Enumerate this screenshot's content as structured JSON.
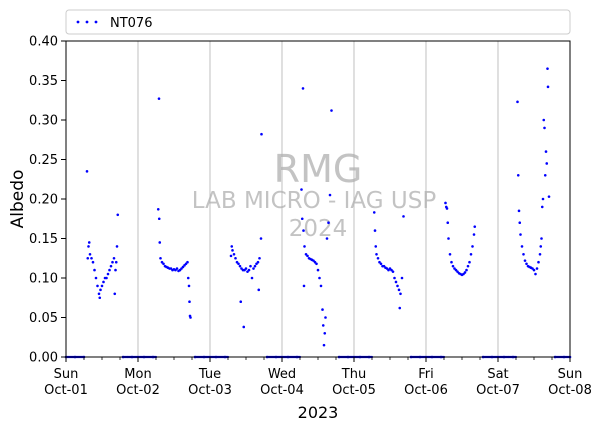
{
  "chart_data": {
    "type": "scatter",
    "title": "",
    "xlabel": "2023",
    "ylabel": "Albedo",
    "ylim": [
      0,
      0.4
    ],
    "xlim": [
      "2023-10-01",
      "2023-10-08"
    ],
    "grid": "vertical lines at day boundaries",
    "legend_placement": "top (above plot)",
    "y_ticks": [
      "0.00",
      "0.05",
      "0.10",
      "0.15",
      "0.20",
      "0.25",
      "0.30",
      "0.35",
      "0.40"
    ],
    "x_ticks": [
      {
        "day": "Sun",
        "date": "Oct-01"
      },
      {
        "day": "Mon",
        "date": "Oct-02"
      },
      {
        "day": "Tue",
        "date": "Oct-03"
      },
      {
        "day": "Wed",
        "date": "Oct-04"
      },
      {
        "day": "Thu",
        "date": "Oct-05"
      },
      {
        "day": "Fri",
        "date": "Oct-06"
      },
      {
        "day": "Sat",
        "date": "Oct-07"
      },
      {
        "day": "Sun",
        "date": "Oct-08"
      }
    ],
    "watermark": [
      "RMG",
      "LAB MICRO - IAG USP",
      "2024"
    ],
    "series": [
      {
        "name": "NT076",
        "color": "#0000ff",
        "marker": "dot",
        "points": [
          [
            "2023-10-01 00:00",
            0.0
          ],
          [
            "2023-10-01 03:00",
            0.0
          ],
          [
            "2023-10-01 06:00",
            0.0
          ],
          [
            "2023-10-01 07:00",
            0.235
          ],
          [
            "2023-10-01 07:15",
            0.125
          ],
          [
            "2023-10-01 07:30",
            0.14
          ],
          [
            "2023-10-01 07:45",
            0.145
          ],
          [
            "2023-10-01 08:00",
            0.13
          ],
          [
            "2023-10-01 08:30",
            0.125
          ],
          [
            "2023-10-01 09:00",
            0.12
          ],
          [
            "2023-10-01 09:30",
            0.11
          ],
          [
            "2023-10-01 10:00",
            0.1
          ],
          [
            "2023-10-01 10:30",
            0.09
          ],
          [
            "2023-10-01 11:00",
            0.08
          ],
          [
            "2023-10-01 11:15",
            0.075
          ],
          [
            "2023-10-01 11:30",
            0.085
          ],
          [
            "2023-10-01 12:00",
            0.09
          ],
          [
            "2023-10-01 12:30",
            0.095
          ],
          [
            "2023-10-01 13:00",
            0.1
          ],
          [
            "2023-10-01 13:30",
            0.1
          ],
          [
            "2023-10-01 14:00",
            0.105
          ],
          [
            "2023-10-01 14:30",
            0.11
          ],
          [
            "2023-10-01 15:00",
            0.115
          ],
          [
            "2023-10-01 15:30",
            0.12
          ],
          [
            "2023-10-01 16:00",
            0.125
          ],
          [
            "2023-10-01 16:15",
            0.08
          ],
          [
            "2023-10-01 16:30",
            0.11
          ],
          [
            "2023-10-01 16:45",
            0.12
          ],
          [
            "2023-10-01 17:00",
            0.14
          ],
          [
            "2023-10-01 17:15",
            0.18
          ],
          [
            "2023-10-01 19:00",
            0.0
          ],
          [
            "2023-10-01 22:00",
            0.0
          ],
          [
            "2023-10-02 02:00",
            0.0
          ],
          [
            "2023-10-02 05:00",
            0.0
          ],
          [
            "2023-10-02 06:45",
            0.187
          ],
          [
            "2023-10-02 07:00",
            0.327
          ],
          [
            "2023-10-02 07:05",
            0.175
          ],
          [
            "2023-10-02 07:15",
            0.145
          ],
          [
            "2023-10-02 07:30",
            0.125
          ],
          [
            "2023-10-02 08:00",
            0.12
          ],
          [
            "2023-10-02 08:30",
            0.118
          ],
          [
            "2023-10-02 09:00",
            0.115
          ],
          [
            "2023-10-02 09:30",
            0.114
          ],
          [
            "2023-10-02 10:00",
            0.113
          ],
          [
            "2023-10-02 10:30",
            0.112
          ],
          [
            "2023-10-02 11:00",
            0.112
          ],
          [
            "2023-10-02 11:30",
            0.11
          ],
          [
            "2023-10-02 12:00",
            0.111
          ],
          [
            "2023-10-02 12:30",
            0.11
          ],
          [
            "2023-10-02 13:00",
            0.112
          ],
          [
            "2023-10-02 13:30",
            0.109
          ],
          [
            "2023-10-02 14:00",
            0.11
          ],
          [
            "2023-10-02 14:30",
            0.112
          ],
          [
            "2023-10-02 15:00",
            0.114
          ],
          [
            "2023-10-02 15:30",
            0.116
          ],
          [
            "2023-10-02 16:00",
            0.118
          ],
          [
            "2023-10-02 16:30",
            0.12
          ],
          [
            "2023-10-02 16:45",
            0.1
          ],
          [
            "2023-10-02 17:00",
            0.09
          ],
          [
            "2023-10-02 17:10",
            0.07
          ],
          [
            "2023-10-02 17:20",
            0.052
          ],
          [
            "2023-10-02 17:30",
            0.05
          ],
          [
            "2023-10-02 19:00",
            0.0
          ],
          [
            "2023-10-02 22:00",
            0.0
          ],
          [
            "2023-10-03 02:00",
            0.0
          ],
          [
            "2023-10-03 05:00",
            0.0
          ],
          [
            "2023-10-03 07:00",
            0.128
          ],
          [
            "2023-10-03 07:15",
            0.14
          ],
          [
            "2023-10-03 07:30",
            0.135
          ],
          [
            "2023-10-03 08:00",
            0.13
          ],
          [
            "2023-10-03 08:30",
            0.125
          ],
          [
            "2023-10-03 09:00",
            0.12
          ],
          [
            "2023-10-03 09:30",
            0.118
          ],
          [
            "2023-10-03 10:00",
            0.115
          ],
          [
            "2023-10-03 10:15",
            0.07
          ],
          [
            "2023-10-03 10:30",
            0.112
          ],
          [
            "2023-10-03 11:00",
            0.11
          ],
          [
            "2023-10-03 11:15",
            0.038
          ],
          [
            "2023-10-03 11:30",
            0.11
          ],
          [
            "2023-10-03 12:00",
            0.112
          ],
          [
            "2023-10-03 12:30",
            0.108
          ],
          [
            "2023-10-03 13:00",
            0.11
          ],
          [
            "2023-10-03 13:30",
            0.115
          ],
          [
            "2023-10-03 14:00",
            0.1
          ],
          [
            "2023-10-03 14:30",
            0.112
          ],
          [
            "2023-10-03 15:00",
            0.115
          ],
          [
            "2023-10-03 15:30",
            0.118
          ],
          [
            "2023-10-03 16:00",
            0.12
          ],
          [
            "2023-10-03 16:15",
            0.085
          ],
          [
            "2023-10-03 16:30",
            0.125
          ],
          [
            "2023-10-03 17:00",
            0.15
          ],
          [
            "2023-10-03 17:10",
            0.282
          ],
          [
            "2023-10-03 19:00",
            0.0
          ],
          [
            "2023-10-03 22:00",
            0.0
          ],
          [
            "2023-10-04 02:00",
            0.0
          ],
          [
            "2023-10-04 05:00",
            0.0
          ],
          [
            "2023-10-04 06:30",
            0.212
          ],
          [
            "2023-10-04 06:45",
            0.175
          ],
          [
            "2023-10-04 07:00",
            0.34
          ],
          [
            "2023-10-04 07:10",
            0.16
          ],
          [
            "2023-10-04 07:20",
            0.09
          ],
          [
            "2023-10-04 07:30",
            0.14
          ],
          [
            "2023-10-04 08:00",
            0.13
          ],
          [
            "2023-10-04 08:30",
            0.128
          ],
          [
            "2023-10-04 09:00",
            0.125
          ],
          [
            "2023-10-04 09:30",
            0.124
          ],
          [
            "2023-10-04 10:00",
            0.123
          ],
          [
            "2023-10-04 10:30",
            0.122
          ],
          [
            "2023-10-04 11:00",
            0.12
          ],
          [
            "2023-10-04 11:30",
            0.118
          ],
          [
            "2023-10-04 12:00",
            0.11
          ],
          [
            "2023-10-04 12:30",
            0.1
          ],
          [
            "2023-10-04 13:00",
            0.09
          ],
          [
            "2023-10-04 13:30",
            0.06
          ],
          [
            "2023-10-04 13:45",
            0.04
          ],
          [
            "2023-10-04 14:00",
            0.015
          ],
          [
            "2023-10-04 14:15",
            0.03
          ],
          [
            "2023-10-04 14:30",
            0.05
          ],
          [
            "2023-10-04 15:00",
            0.15
          ],
          [
            "2023-10-04 15:30",
            0.17
          ],
          [
            "2023-10-04 16:00",
            0.205
          ],
          [
            "2023-10-04 16:30",
            0.312
          ],
          [
            "2023-10-04 19:00",
            0.0
          ],
          [
            "2023-10-04 22:00",
            0.0
          ],
          [
            "2023-10-05 02:00",
            0.0
          ],
          [
            "2023-10-05 05:00",
            0.0
          ],
          [
            "2023-10-05 06:45",
            0.183
          ],
          [
            "2023-10-05 07:00",
            0.16
          ],
          [
            "2023-10-05 07:15",
            0.14
          ],
          [
            "2023-10-05 07:30",
            0.13
          ],
          [
            "2023-10-05 08:00",
            0.125
          ],
          [
            "2023-10-05 08:30",
            0.12
          ],
          [
            "2023-10-05 09:00",
            0.118
          ],
          [
            "2023-10-05 09:30",
            0.115
          ],
          [
            "2023-10-05 10:00",
            0.115
          ],
          [
            "2023-10-05 10:30",
            0.113
          ],
          [
            "2023-10-05 11:00",
            0.112
          ],
          [
            "2023-10-05 11:30",
            0.11
          ],
          [
            "2023-10-05 12:00",
            0.112
          ],
          [
            "2023-10-05 12:30",
            0.11
          ],
          [
            "2023-10-05 13:00",
            0.108
          ],
          [
            "2023-10-05 13:30",
            0.1
          ],
          [
            "2023-10-05 14:00",
            0.095
          ],
          [
            "2023-10-05 14:30",
            0.09
          ],
          [
            "2023-10-05 15:00",
            0.085
          ],
          [
            "2023-10-05 15:15",
            0.062
          ],
          [
            "2023-10-05 15:30",
            0.08
          ],
          [
            "2023-10-05 16:00",
            0.1
          ],
          [
            "2023-10-05 16:30",
            0.178
          ],
          [
            "2023-10-05 19:00",
            0.0
          ],
          [
            "2023-10-05 22:00",
            0.0
          ],
          [
            "2023-10-06 02:00",
            0.0
          ],
          [
            "2023-10-06 05:00",
            0.0
          ],
          [
            "2023-10-06 06:30",
            0.195
          ],
          [
            "2023-10-06 06:45",
            0.19
          ],
          [
            "2023-10-06 07:00",
            0.188
          ],
          [
            "2023-10-06 07:15",
            0.17
          ],
          [
            "2023-10-06 07:30",
            0.15
          ],
          [
            "2023-10-06 08:00",
            0.13
          ],
          [
            "2023-10-06 08:30",
            0.12
          ],
          [
            "2023-10-06 09:00",
            0.115
          ],
          [
            "2023-10-06 09:30",
            0.112
          ],
          [
            "2023-10-06 10:00",
            0.11
          ],
          [
            "2023-10-06 10:30",
            0.108
          ],
          [
            "2023-10-06 11:00",
            0.106
          ],
          [
            "2023-10-06 11:30",
            0.105
          ],
          [
            "2023-10-06 12:00",
            0.104
          ],
          [
            "2023-10-06 12:30",
            0.105
          ],
          [
            "2023-10-06 13:00",
            0.107
          ],
          [
            "2023-10-06 13:30",
            0.11
          ],
          [
            "2023-10-06 14:00",
            0.115
          ],
          [
            "2023-10-06 14:30",
            0.12
          ],
          [
            "2023-10-06 15:00",
            0.13
          ],
          [
            "2023-10-06 15:30",
            0.14
          ],
          [
            "2023-10-06 16:00",
            0.155
          ],
          [
            "2023-10-06 16:15",
            0.165
          ],
          [
            "2023-10-06 19:00",
            0.0
          ],
          [
            "2023-10-06 22:00",
            0.0
          ],
          [
            "2023-10-07 02:00",
            0.0
          ],
          [
            "2023-10-07 05:00",
            0.0
          ],
          [
            "2023-10-07 06:30",
            0.323
          ],
          [
            "2023-10-07 06:45",
            0.23
          ],
          [
            "2023-10-07 07:00",
            0.185
          ],
          [
            "2023-10-07 07:15",
            0.17
          ],
          [
            "2023-10-07 07:30",
            0.155
          ],
          [
            "2023-10-07 08:00",
            0.14
          ],
          [
            "2023-10-07 08:30",
            0.13
          ],
          [
            "2023-10-07 09:00",
            0.122
          ],
          [
            "2023-10-07 09:30",
            0.118
          ],
          [
            "2023-10-07 10:00",
            0.115
          ],
          [
            "2023-10-07 10:30",
            0.114
          ],
          [
            "2023-10-07 11:00",
            0.113
          ],
          [
            "2023-10-07 11:30",
            0.112
          ],
          [
            "2023-10-07 12:00",
            0.11
          ],
          [
            "2023-10-07 12:30",
            0.105
          ],
          [
            "2023-10-07 13:00",
            0.112
          ],
          [
            "2023-10-07 13:30",
            0.12
          ],
          [
            "2023-10-07 14:00",
            0.13
          ],
          [
            "2023-10-07 14:15",
            0.14
          ],
          [
            "2023-10-07 14:30",
            0.15
          ],
          [
            "2023-10-07 14:45",
            0.19
          ],
          [
            "2023-10-07 15:00",
            0.2
          ],
          [
            "2023-10-07 15:15",
            0.3
          ],
          [
            "2023-10-07 15:30",
            0.29
          ],
          [
            "2023-10-07 15:45",
            0.23
          ],
          [
            "2023-10-07 16:00",
            0.26
          ],
          [
            "2023-10-07 16:15",
            0.245
          ],
          [
            "2023-10-07 16:30",
            0.365
          ],
          [
            "2023-10-07 16:40",
            0.342
          ],
          [
            "2023-10-07 17:00",
            0.203
          ],
          [
            "2023-10-07 19:00",
            0.0
          ],
          [
            "2023-10-07 22:00",
            0.0
          ],
          [
            "2023-10-08 00:00",
            0.0
          ]
        ]
      }
    ]
  }
}
